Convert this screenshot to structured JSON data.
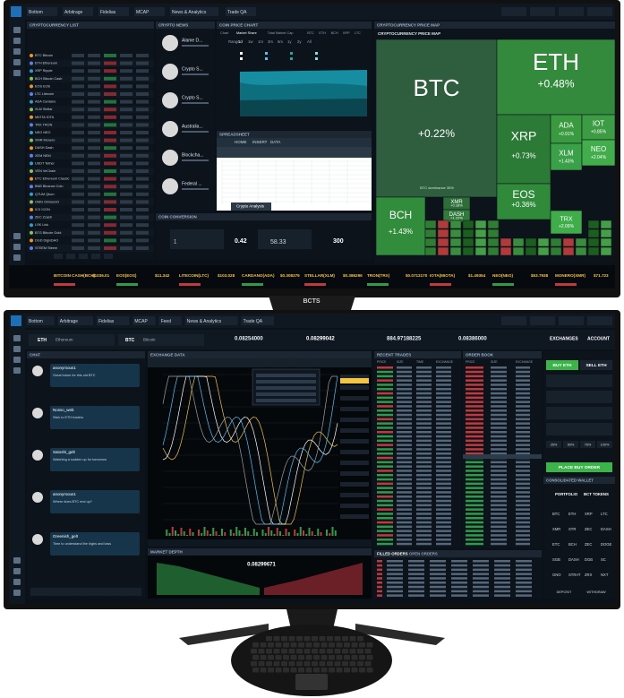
{
  "brand": "BCTS",
  "top_screen": {
    "menu": [
      "Bottom",
      "Arbitrage",
      "Fidelias",
      "MCAP",
      "News & Analytics",
      "Trade QA"
    ],
    "coin_list": {
      "title": "CRYPTOCURRENCY LIST",
      "rows": [
        "BTC Bitcoin",
        "ETH Ethereum",
        "XRP Ripple",
        "BCH Bitcoin Cash",
        "EOS EOS",
        "LTC Litecoin",
        "ADA Cardano",
        "XLM Stellar",
        "MIOTA IOTA",
        "TRX TRON",
        "NEO NEO",
        "XMR Monero",
        "DASH Dash",
        "XEM NEM",
        "USDT Tether",
        "VEN VeChain",
        "ETC Ethereum Classic",
        "BNB Binance Coin",
        "QTUM Qtum",
        "OMG OmiseGO",
        "ICX ICON",
        "ZEC Zcash",
        "LSK Lisk",
        "BTG Bitcoin Gold",
        "DGD DigixDAO",
        "STEEM Steem"
      ]
    },
    "news": {
      "title": "CRYPTO NEWS",
      "items": [
        "Alame D...",
        "Crypto S...",
        "Crypto S...",
        "Australia...",
        "Blockcha...",
        "Federal ..."
      ]
    },
    "price_chart": {
      "title": "COIN PRICE CHART",
      "tabs": [
        "Chart",
        "Market Share",
        "Total Market Cap",
        "BTC",
        "ETH",
        "BCH",
        "XRP",
        "LTC"
      ],
      "ranges": [
        "Range",
        "1d",
        "1w",
        "1m",
        "3m",
        "6m",
        "1y",
        "2y",
        "All"
      ]
    },
    "spreadsheet": {
      "title": "SPREADSHEET",
      "tabs": [
        "HOME",
        "INSERT",
        "DATA"
      ],
      "sheet": "Crypto Analysis"
    },
    "converter": {
      "title": "COIN CONVERSION",
      "from": "1",
      "rate": "0.42",
      "to": "58.33",
      "amount": "300"
    },
    "heatmap": {
      "title": "CRYPTOCURRENCY PRICE MAP",
      "note": "BTC dominance 35%",
      "tiles": [
        {
          "symbol": "BTC",
          "change": "+0.22%"
        },
        {
          "symbol": "ETH",
          "change": "+0.48%"
        },
        {
          "symbol": "XRP",
          "change": "+0.73%"
        },
        {
          "symbol": "ADA",
          "change": "+0.91%"
        },
        {
          "symbol": "IOT",
          "change": "+0.85%"
        },
        {
          "symbol": "XLM",
          "change": "+1.43%"
        },
        {
          "symbol": "NEO",
          "change": "+2.04%"
        },
        {
          "symbol": "EOS",
          "change": "+0.36%"
        },
        {
          "symbol": "BCH",
          "change": "+1.43%"
        },
        {
          "symbol": "XMR",
          "change": "+0.16%"
        },
        {
          "symbol": "DASH",
          "change": "+1.12%"
        },
        {
          "symbol": "TRX",
          "change": "+2.09%"
        }
      ]
    },
    "ticker": [
      {
        "name": "BITCOIN CASH(BCH)",
        "price": "$1036.01"
      },
      {
        "name": "EOS(EOS)",
        "price": "$11.342"
      },
      {
        "name": "LITECOIN(LTC)",
        "price": "$103.028"
      },
      {
        "name": "CARDANO(ADA)",
        "price": "$0.308379"
      },
      {
        "name": "STELLAR(XLM)",
        "price": "$0.386296"
      },
      {
        "name": "TRON(TRX)",
        "price": "$0.0713170"
      },
      {
        "name": "IOTA(MIOTA)",
        "price": "$1.49354"
      },
      {
        "name": "NEO(NEO)",
        "price": "$53.7938"
      },
      {
        "name": "MONERO(XMR)",
        "price": "$71.723"
      }
    ]
  },
  "bottom_screen": {
    "menu": [
      "Bottom",
      "Arbitrage",
      "Fidelias",
      "MCAP",
      "Feed",
      "News & Analytics",
      "Trade QA"
    ],
    "pair": {
      "base": "ETH",
      "base_name": "Ethereum",
      "quote": "BTC",
      "quote_name": "Bitcoin"
    },
    "stats": [
      "0.08254000",
      "0.08299042",
      "884.97188225",
      "0.08386000"
    ],
    "exchanges": "EXCHANGES",
    "account": "ACCOUNT",
    "chat": {
      "title": "CHAT",
      "messages": [
        {
          "user": "anonymous1",
          "text": "Great future for this old BTC"
        },
        {
          "user": "Nosso_web",
          "text": "Stick to ETH traders"
        },
        {
          "user": "Satoshi_gelt",
          "text": "Watching a sudden up for tomorrow"
        },
        {
          "user": "anonymous1",
          "text": "Where does BTC end up?"
        },
        {
          "user": "Greenish_gelt",
          "text": "Time to understand the highs and lows"
        }
      ]
    },
    "exchange_data": {
      "title": "EXCHANGE DATA"
    },
    "recent_trades": {
      "title": "RECENT TRADES",
      "columns": [
        "PRICE",
        "SIZE",
        "TIME",
        "EXCHANGE"
      ]
    },
    "order_book": {
      "title": "ORDER BOOK",
      "columns": [
        "PRICE",
        "SIZE",
        "EXCHANGE"
      ]
    },
    "market_depth": {
      "title": "MARKET DEPTH",
      "mid": "0.08299671"
    },
    "orders": {
      "tabs": [
        "FILLED ORDERS",
        "OPEN ORDERS"
      ]
    },
    "trade": {
      "buy": "BUY ETH",
      "sell": "SELL ETH",
      "percents": [
        "25%",
        "50%",
        "75%",
        "100%"
      ],
      "place": "PLACE BUY ORDER"
    },
    "wallet": {
      "title": "CONSOLIDATED WALLET",
      "tabs": [
        "PORTFOLIO",
        "BCT TOKENS"
      ],
      "coins": [
        "BTC",
        "ETH",
        "XRP",
        "LTC",
        "XMR",
        "STR",
        "ZEC",
        "DASH",
        "ETC",
        "BCH",
        "ZEC",
        "DOGE",
        "SGB",
        "DASH",
        "DGB",
        "SC",
        "GNO",
        "STRAT",
        "ZRX",
        "NXT"
      ],
      "deposit": "DEPOSIT",
      "withdraw": "WITHDRAW"
    }
  }
}
